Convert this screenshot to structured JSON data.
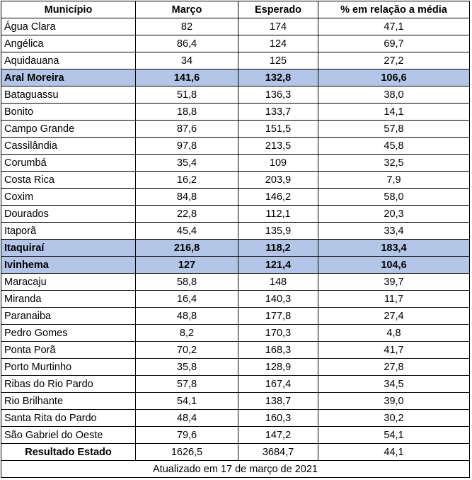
{
  "headers": [
    "Município",
    "Março",
    "Esperado",
    "% em relação a média"
  ],
  "highlight_color": "#b4c6e7",
  "rows": [
    {
      "municipio": "Água Clara",
      "marco": "82",
      "esperado": "174",
      "pct": "47,1",
      "highlight": false
    },
    {
      "municipio": "Angélica",
      "marco": "86,4",
      "esperado": "124",
      "pct": "69,7",
      "highlight": false
    },
    {
      "municipio": "Aquidauana",
      "marco": "34",
      "esperado": "125",
      "pct": "27,2",
      "highlight": false
    },
    {
      "municipio": "Aral Moreira",
      "marco": "141,6",
      "esperado": "132,8",
      "pct": "106,6",
      "highlight": true
    },
    {
      "municipio": "Bataguassu",
      "marco": "51,8",
      "esperado": "136,3",
      "pct": "38,0",
      "highlight": false
    },
    {
      "municipio": "Bonito",
      "marco": "18,8",
      "esperado": "133,7",
      "pct": "14,1",
      "highlight": false
    },
    {
      "municipio": "Campo Grande",
      "marco": "87,6",
      "esperado": "151,5",
      "pct": "57,8",
      "highlight": false
    },
    {
      "municipio": "Cassilândia",
      "marco": "97,8",
      "esperado": "213,5",
      "pct": "45,8",
      "highlight": false
    },
    {
      "municipio": "Corumbá",
      "marco": "35,4",
      "esperado": "109",
      "pct": "32,5",
      "highlight": false
    },
    {
      "municipio": "Costa Rica",
      "marco": "16,2",
      "esperado": "203,9",
      "pct": "7,9",
      "highlight": false
    },
    {
      "municipio": "Coxim",
      "marco": "84,8",
      "esperado": "146,2",
      "pct": "58,0",
      "highlight": false
    },
    {
      "municipio": "Dourados",
      "marco": "22,8",
      "esperado": "112,1",
      "pct": "20,3",
      "highlight": false
    },
    {
      "municipio": "Itaporã",
      "marco": "45,4",
      "esperado": "135,9",
      "pct": "33,4",
      "highlight": false
    },
    {
      "municipio": "Itaquiraí",
      "marco": "216,8",
      "esperado": "118,2",
      "pct": "183,4",
      "highlight": true
    },
    {
      "municipio": "Ivinhema",
      "marco": "127",
      "esperado": "121,4",
      "pct": "104,6",
      "highlight": true
    },
    {
      "municipio": "Maracaju",
      "marco": "58,8",
      "esperado": "148",
      "pct": "39,7",
      "highlight": false
    },
    {
      "municipio": "Miranda",
      "marco": "16,4",
      "esperado": "140,3",
      "pct": "11,7",
      "highlight": false
    },
    {
      "municipio": "Paranaiba",
      "marco": "48,8",
      "esperado": "177,8",
      "pct": "27,4",
      "highlight": false
    },
    {
      "municipio": "Pedro Gomes",
      "marco": "8,2",
      "esperado": "170,3",
      "pct": "4,8",
      "highlight": false
    },
    {
      "municipio": "Ponta Porã",
      "marco": "70,2",
      "esperado": "168,3",
      "pct": "41,7",
      "highlight": false
    },
    {
      "municipio": "Porto Murtinho",
      "marco": "35,8",
      "esperado": "128,9",
      "pct": "27,8",
      "highlight": false
    },
    {
      "municipio": "Ribas do Rio Pardo",
      "marco": "57,8",
      "esperado": "167,4",
      "pct": "34,5",
      "highlight": false
    },
    {
      "municipio": "Rio Brilhante",
      "marco": "54,1",
      "esperado": "138,7",
      "pct": "39,0",
      "highlight": false
    },
    {
      "municipio": "Santa Rita do Pardo",
      "marco": "48,4",
      "esperado": "160,3",
      "pct": "30,2",
      "highlight": false
    },
    {
      "municipio": "São Gabriel do Oeste",
      "marco": "79,6",
      "esperado": "147,2",
      "pct": "54,1",
      "highlight": false
    }
  ],
  "total": {
    "label": "Resultado Estado",
    "marco": "1626,5",
    "esperado": "3684,7",
    "pct": "44,1"
  },
  "footer": "Atualizado em 17 de março de 2021"
}
